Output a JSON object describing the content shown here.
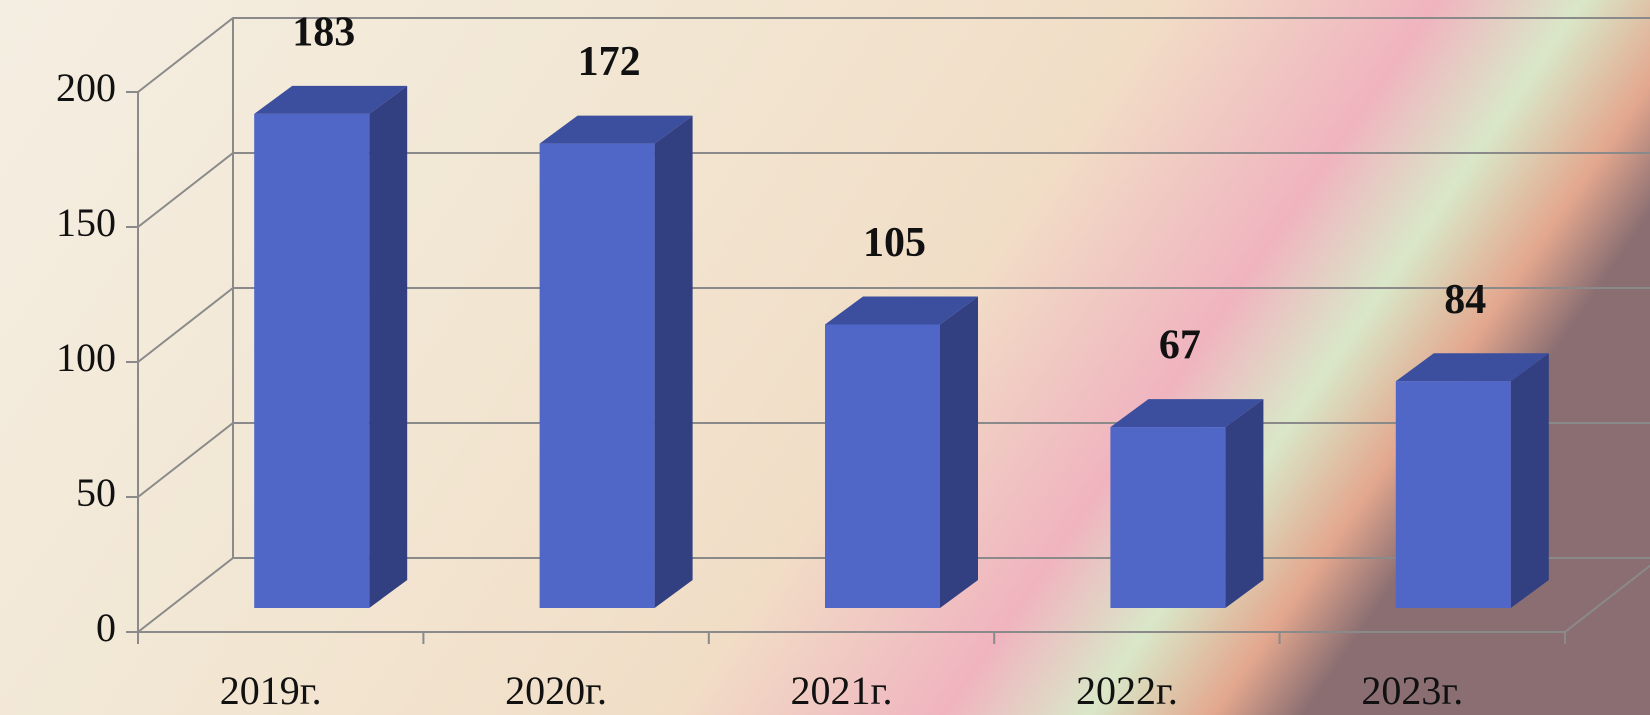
{
  "chart_data": {
    "type": "bar3d",
    "categories": [
      "2019г.",
      "2020г.",
      "2021г.",
      "2022г.",
      "2023г."
    ],
    "values": [
      183,
      172,
      105,
      67,
      84
    ],
    "color": "#5067c8",
    "ylim": [
      0,
      200
    ],
    "yticks": [
      0,
      50,
      100,
      150,
      200
    ],
    "grid": true
  }
}
